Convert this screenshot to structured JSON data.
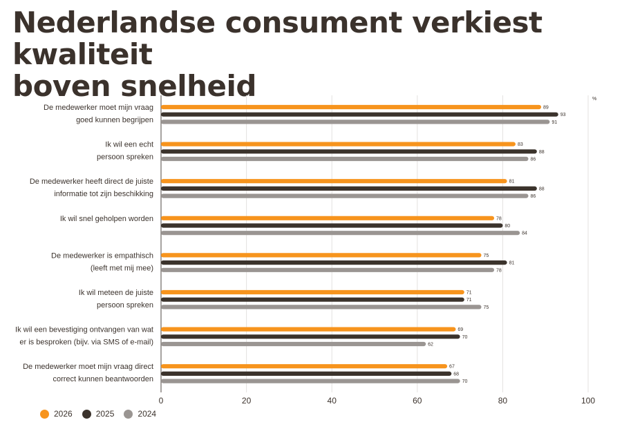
{
  "title_lines": [
    "Nederlandse consument verkiest kwaliteit",
    "boven snelheid"
  ],
  "chart_data": {
    "type": "bar",
    "orientation": "horizontal",
    "unit_label": "%",
    "xlim": [
      0,
      100
    ],
    "xticks": [
      0,
      20,
      40,
      60,
      80,
      100
    ],
    "grid": true,
    "legend_position": "bottom-left",
    "categories": [
      [
        "De medewerker moet mijn vraag",
        "goed kunnen begrijpen"
      ],
      [
        "Ik wil een echt",
        "persoon spreken"
      ],
      [
        "De medewerker heeft direct de juiste",
        "informatie tot zijn beschikking"
      ],
      [
        "Ik wil snel geholpen worden"
      ],
      [
        "De medewerker is empathisch",
        "(leeft met mij mee)"
      ],
      [
        "Ik wil meteen de juiste",
        "persoon spreken"
      ],
      [
        "Ik wil een bevestiging ontvangen van wat",
        "er is besproken (bijv. via SMS of e-mail)"
      ],
      [
        "De medewerker moet mijn vraag direct",
        "correct kunnen beantwoorden"
      ]
    ],
    "series": [
      {
        "name": "2026",
        "color": "#f7941d",
        "values": [
          89,
          83,
          81,
          78,
          75,
          71,
          69,
          67
        ]
      },
      {
        "name": "2025",
        "color": "#3b332c",
        "values": [
          93,
          88,
          88,
          80,
          81,
          71,
          70,
          68
        ]
      },
      {
        "name": "2024",
        "color": "#9a9592",
        "values": [
          91,
          86,
          86,
          84,
          78,
          75,
          62,
          70
        ]
      }
    ]
  }
}
